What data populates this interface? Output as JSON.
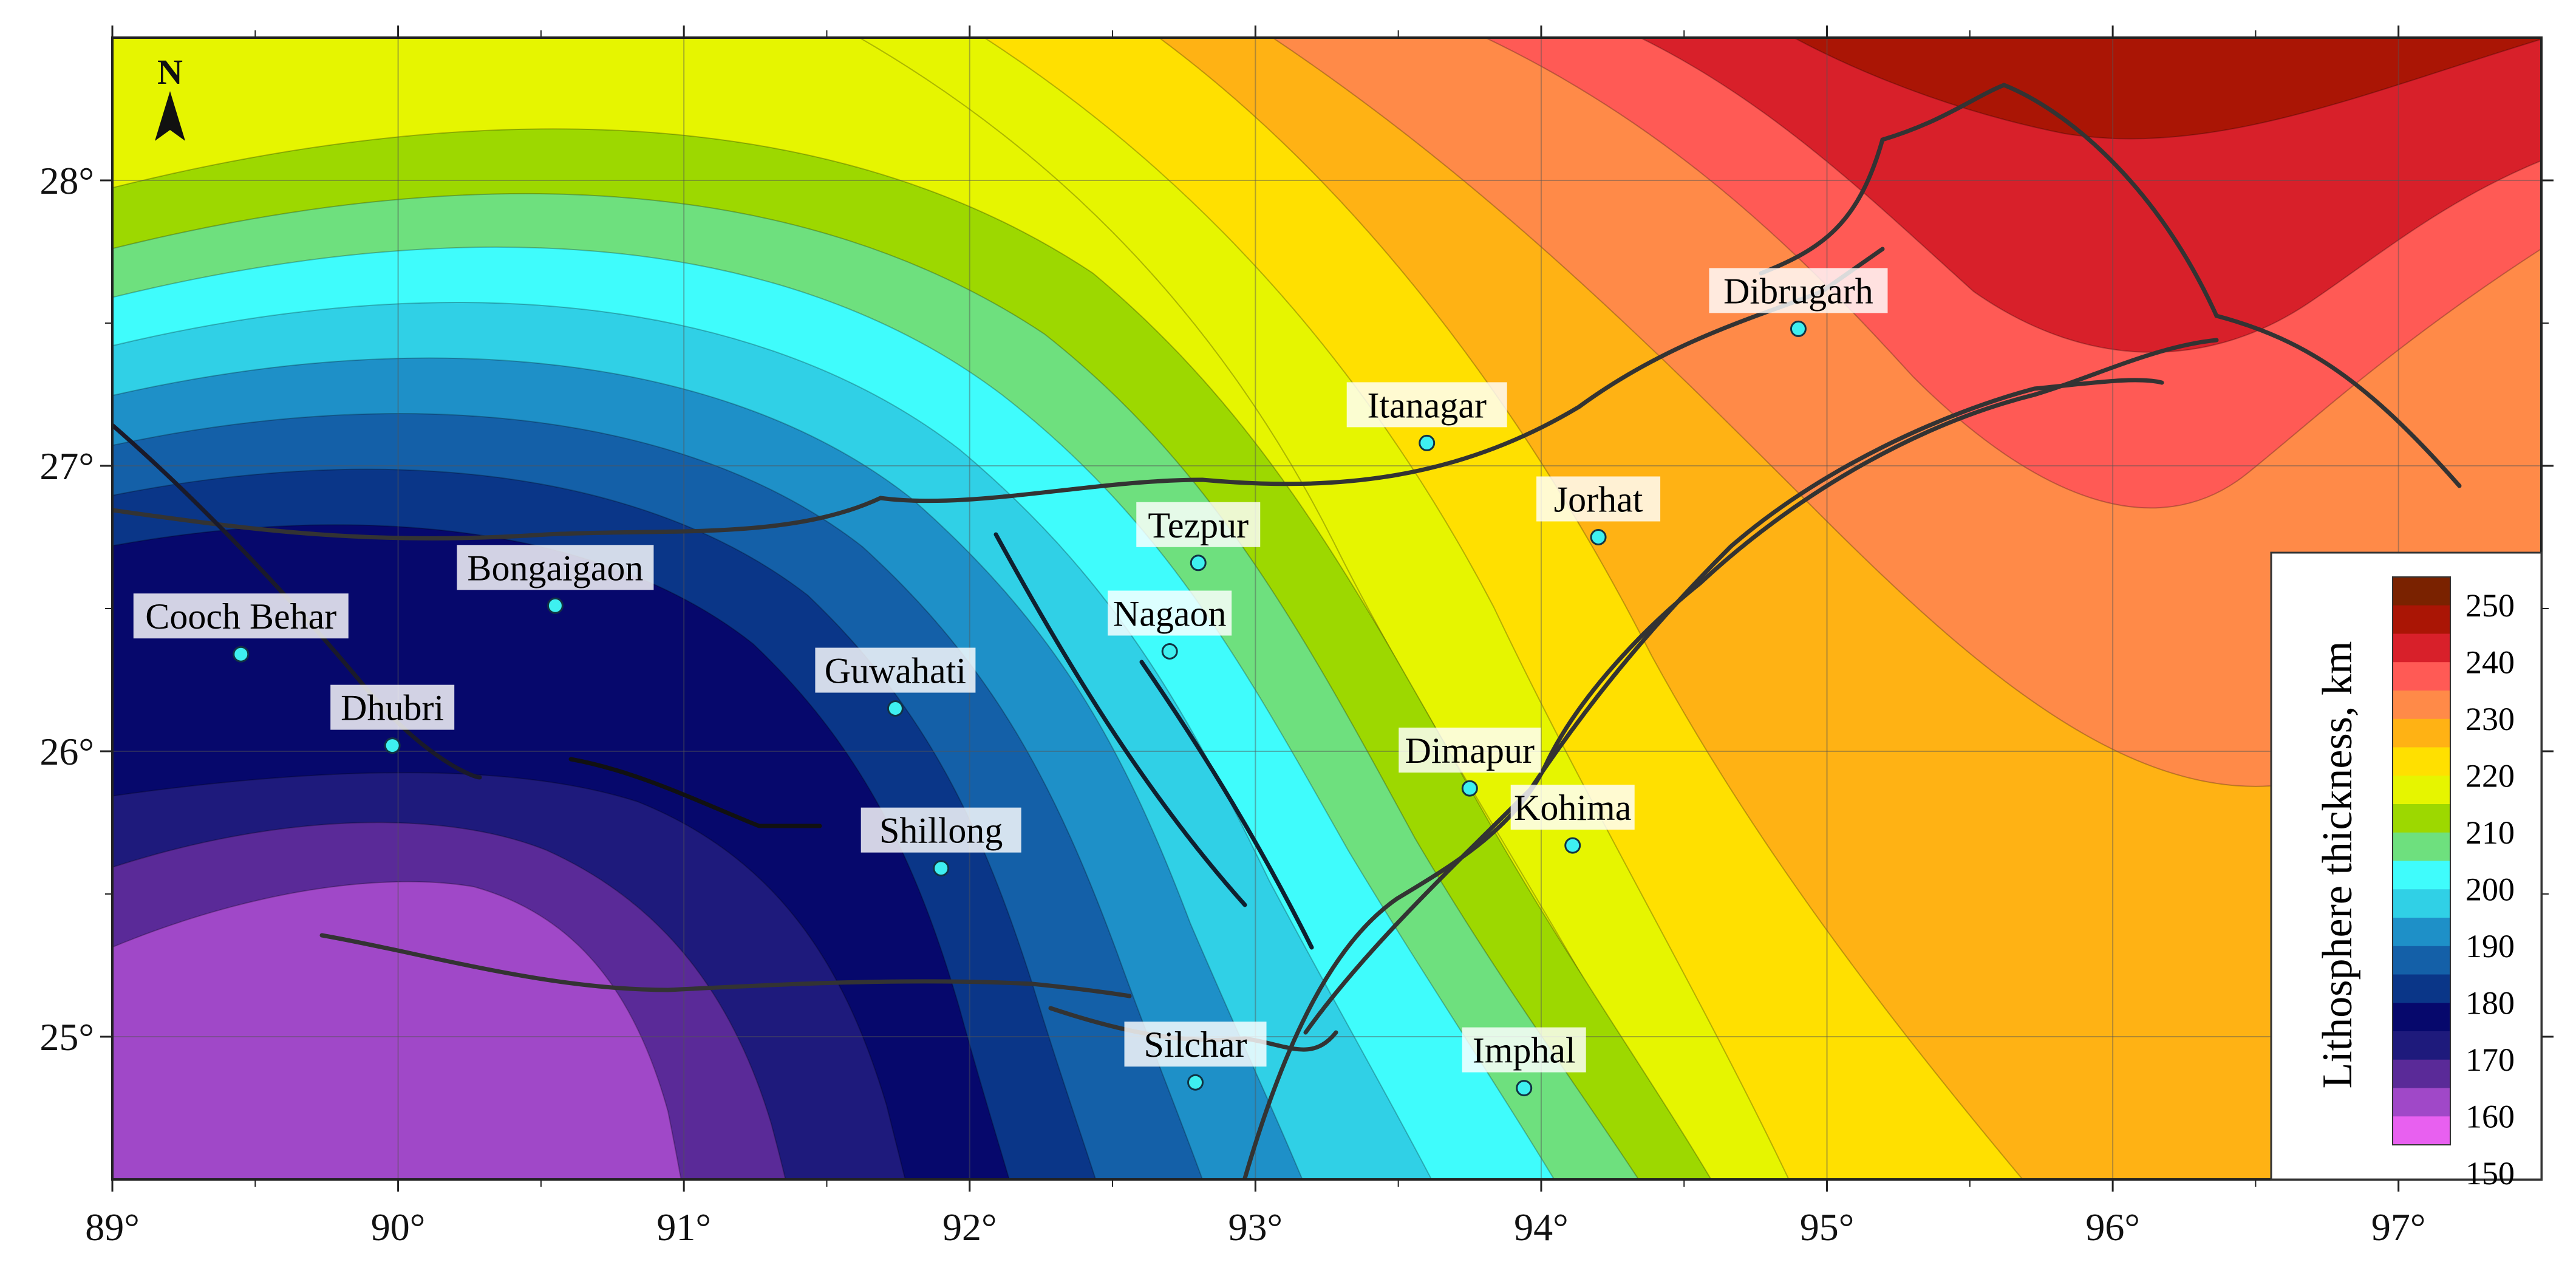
{
  "map": {
    "x_ticks": [
      "89°",
      "90°",
      "91°",
      "92°",
      "93°",
      "94°",
      "95°",
      "96°",
      "97°"
    ],
    "y_ticks": [
      "28°",
      "27°",
      "26°",
      "25°"
    ],
    "north_label": "N",
    "cities": [
      {
        "name": "Dibrugarh",
        "lon": 94.9,
        "lat": 27.48
      },
      {
        "name": "Itanagar",
        "lon": 93.6,
        "lat": 27.08
      },
      {
        "name": "Jorhat",
        "lon": 94.2,
        "lat": 26.75
      },
      {
        "name": "Tezpur",
        "lon": 92.8,
        "lat": 26.66
      },
      {
        "name": "Nagaon",
        "lon": 92.7,
        "lat": 26.35
      },
      {
        "name": "Bongaigaon",
        "lon": 90.55,
        "lat": 26.51
      },
      {
        "name": "Cooch Behar",
        "lon": 89.45,
        "lat": 26.34
      },
      {
        "name": "Guwahati",
        "lon": 91.74,
        "lat": 26.15
      },
      {
        "name": "Dhubri",
        "lon": 89.98,
        "lat": 26.02
      },
      {
        "name": "Dimapur",
        "lon": 93.75,
        "lat": 25.87
      },
      {
        "name": "Kohima",
        "lon": 94.11,
        "lat": 25.67
      },
      {
        "name": "Shillong",
        "lon": 91.9,
        "lat": 25.59
      },
      {
        "name": "Silchar",
        "lon": 92.79,
        "lat": 24.84
      },
      {
        "name": "Imphal",
        "lon": 93.94,
        "lat": 24.82
      }
    ],
    "extent": {
      "lon": [
        89,
        97.5
      ],
      "lat": [
        24.5,
        28.5
      ]
    }
  },
  "legend": {
    "title": "Lithosphere thickness, km",
    "labels": [
      "250",
      "240",
      "230",
      "220",
      "210",
      "200",
      "190",
      "180",
      "170",
      "160",
      "150"
    ],
    "colors": [
      "#7a2200",
      "#aa1505",
      "#d8202a",
      "#ff5a55",
      "#ff8a48",
      "#ffb214",
      "#ffe000",
      "#e6f500",
      "#9dd800",
      "#6ee07e",
      "#3ffcfc",
      "#30d0e6",
      "#1e90c8",
      "#1460a8",
      "#0a3688",
      "#06086c",
      "#1e1a7c",
      "#5a2a98",
      "#a048c8",
      "#e860f0"
    ]
  }
}
